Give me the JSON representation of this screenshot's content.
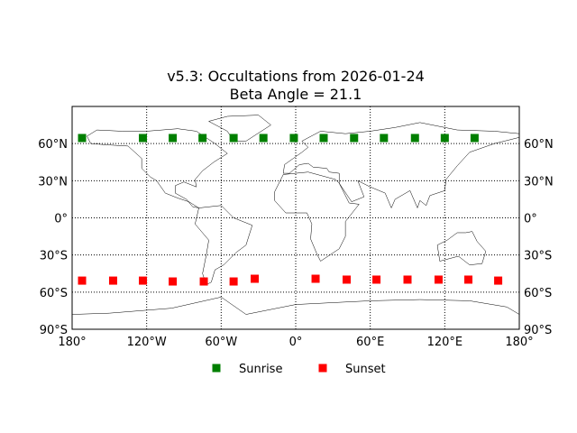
{
  "title_line1": "v5.3: Occultations from 2026-01-24",
  "title_line2": "Beta Angle = 21.1",
  "chart_data": {
    "type": "scatter",
    "projection": "equirectangular",
    "xlim": [
      -180,
      180
    ],
    "ylim": [
      -90,
      90
    ],
    "grid": true,
    "legend_position": "bottom-center",
    "x_ticks": [
      {
        "value": -180,
        "label": "180°"
      },
      {
        "value": -120,
        "label": "120°W"
      },
      {
        "value": -60,
        "label": "60°W"
      },
      {
        "value": 0,
        "label": "0°"
      },
      {
        "value": 60,
        "label": "60°E"
      },
      {
        "value": 120,
        "label": "120°E"
      },
      {
        "value": 180,
        "label": "180°"
      }
    ],
    "y_ticks": [
      {
        "value": 60,
        "label": "60°N"
      },
      {
        "value": 30,
        "label": "30°N"
      },
      {
        "value": 0,
        "label": "0°"
      },
      {
        "value": -30,
        "label": "30°S"
      },
      {
        "value": -60,
        "label": "60°S"
      },
      {
        "value": -90,
        "label": "90°S"
      }
    ],
    "series": [
      {
        "name": "Sunrise",
        "color": "#007f00",
        "marker": "square",
        "points": [
          [
            -172,
            64.5
          ],
          [
            -123,
            64.5
          ],
          [
            -99,
            64.5
          ],
          [
            -75,
            64.5
          ],
          [
            -50,
            64.5
          ],
          [
            -26,
            64.5
          ],
          [
            -1.5,
            64.5
          ],
          [
            22.5,
            64.5
          ],
          [
            47,
            64.5
          ],
          [
            71,
            64.5
          ],
          [
            96,
            64.5
          ],
          [
            120,
            64.5
          ],
          [
            144,
            64.5
          ]
        ]
      },
      {
        "name": "Sunset",
        "color": "#ff0000",
        "marker": "square",
        "points": [
          [
            -172,
            -50.7
          ],
          [
            -147,
            -50.7
          ],
          [
            -123,
            -50.7
          ],
          [
            -99,
            -51.4
          ],
          [
            -74,
            -51.4
          ],
          [
            -50,
            -51.4
          ],
          [
            -33,
            -49.2
          ],
          [
            16,
            -49.2
          ],
          [
            41,
            -49.9
          ],
          [
            65,
            -49.9
          ],
          [
            90,
            -49.9
          ],
          [
            115,
            -49.9
          ],
          [
            139,
            -49.9
          ],
          [
            163,
            -50.7
          ]
        ]
      }
    ]
  }
}
